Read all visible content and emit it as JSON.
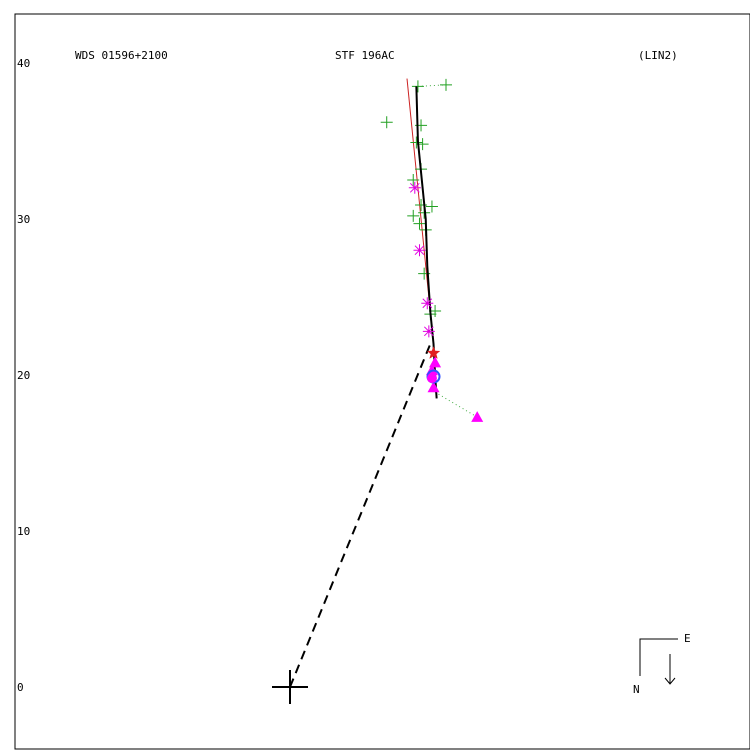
{
  "header": {
    "left": "WDS 01596+2100",
    "center": "STF 196AC",
    "right": "(LIN2)"
  },
  "compass": {
    "east": "E",
    "north": "N"
  },
  "chart_data": {
    "type": "scatter",
    "title": "STF 196AC",
    "xlabel": "",
    "ylabel": "",
    "ylim": [
      -4,
      44
    ],
    "xlim": [
      -19,
      28
    ],
    "yticks": [
      0,
      10,
      20,
      30,
      40
    ],
    "ytick_labels": [
      "0",
      "10",
      "20",
      "30",
      "40"
    ],
    "grid": false,
    "primary": {
      "name": "primary",
      "x": 0,
      "y": 0
    },
    "separation_vector": {
      "from": [
        0,
        0
      ],
      "to": [
        9,
        22
      ]
    },
    "orbit_path": [
      [
        8.1,
        38.5
      ],
      [
        8.2,
        35.0
      ],
      [
        8.5,
        32.0
      ],
      [
        8.7,
        30.0
      ],
      [
        8.8,
        27.0
      ],
      [
        9.0,
        24.0
      ],
      [
        9.2,
        22.0
      ],
      [
        9.3,
        20.0
      ],
      [
        9.4,
        18.5
      ]
    ],
    "linear_fit": [
      [
        7.5,
        39.0
      ],
      [
        9.2,
        22.0
      ]
    ],
    "measurements": {
      "plus_green": [
        [
          8.2,
          38.5
        ],
        [
          10.0,
          38.6
        ],
        [
          6.2,
          36.2
        ],
        [
          8.4,
          36.0
        ],
        [
          8.1,
          34.9
        ],
        [
          8.5,
          34.8
        ],
        [
          8.4,
          33.2
        ],
        [
          7.9,
          32.5
        ],
        [
          8.4,
          30.9
        ],
        [
          8.6,
          30.4
        ],
        [
          9.1,
          30.8
        ],
        [
          7.9,
          30.2
        ],
        [
          8.3,
          29.7
        ],
        [
          8.7,
          29.3
        ],
        [
          8.6,
          26.5
        ],
        [
          9.3,
          24.1
        ],
        [
          9.0,
          23.9
        ]
      ],
      "asterisk_magenta": [
        [
          8.0,
          32.0
        ],
        [
          8.3,
          28.0
        ],
        [
          8.8,
          24.6
        ],
        [
          8.9,
          22.8
        ]
      ],
      "star_red": [
        [
          9.2,
          21.4
        ]
      ],
      "triangle_magenta": [
        [
          9.3,
          20.8
        ],
        [
          9.1,
          20.3
        ],
        [
          9.2,
          19.2
        ],
        [
          12.0,
          17.3
        ]
      ],
      "circle_blue": [
        [
          9.2,
          19.9
        ]
      ],
      "filled_circle_magenta": [
        [
          9.1,
          19.8
        ]
      ]
    },
    "residual_links": [
      [
        [
          8.2,
          38.5
        ],
        [
          10.0,
          38.6
        ]
      ],
      [
        [
          9.3,
          18.9
        ],
        [
          12.0,
          17.3
        ]
      ]
    ],
    "colors": {
      "plus": "#22a022",
      "asterisk": "#e000e0",
      "star": "#e02020",
      "triangle": "#ff00ff",
      "circle": "#3050ff",
      "fit": "#cc2222",
      "orbit": "#000000"
    }
  }
}
